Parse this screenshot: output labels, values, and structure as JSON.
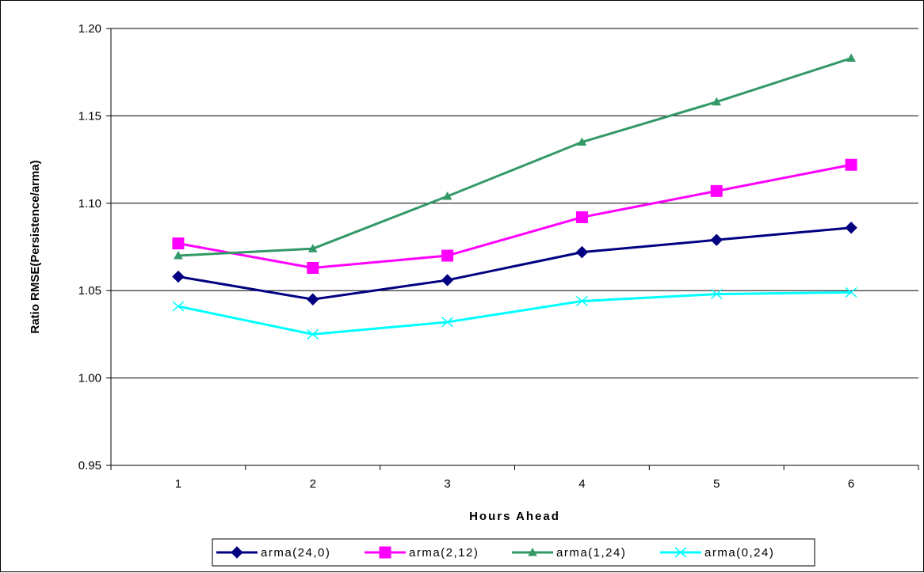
{
  "chart_data": {
    "type": "line",
    "title": "",
    "xlabel": "Hours Ahead",
    "ylabel": "Ratio RMSE(Persistence/arma)",
    "categories": [
      "1",
      "2",
      "3",
      "4",
      "5",
      "6"
    ],
    "ylim": [
      0.95,
      1.2
    ],
    "yticks": [
      "0.95",
      "1.00",
      "1.05",
      "1.10",
      "1.15",
      "1.20"
    ],
    "grid": "horizontal",
    "legend_position": "bottom",
    "series": [
      {
        "name": "arma(24,0)",
        "values": [
          1.058,
          1.045,
          1.056,
          1.072,
          1.079,
          1.086
        ],
        "color": "#000080",
        "marker": "diamond"
      },
      {
        "name": "arma(2,12)",
        "values": [
          1.077,
          1.063,
          1.07,
          1.092,
          1.107,
          1.122
        ],
        "color": "#ff00ff",
        "marker": "square"
      },
      {
        "name": "arma(1,24)",
        "values": [
          1.07,
          1.074,
          1.104,
          1.135,
          1.158,
          1.183
        ],
        "color": "#339966",
        "marker": "triangle"
      },
      {
        "name": "arma(0,24)",
        "values": [
          1.041,
          1.025,
          1.032,
          1.044,
          1.048,
          1.049
        ],
        "color": "#00ffff",
        "marker": "x"
      }
    ]
  }
}
